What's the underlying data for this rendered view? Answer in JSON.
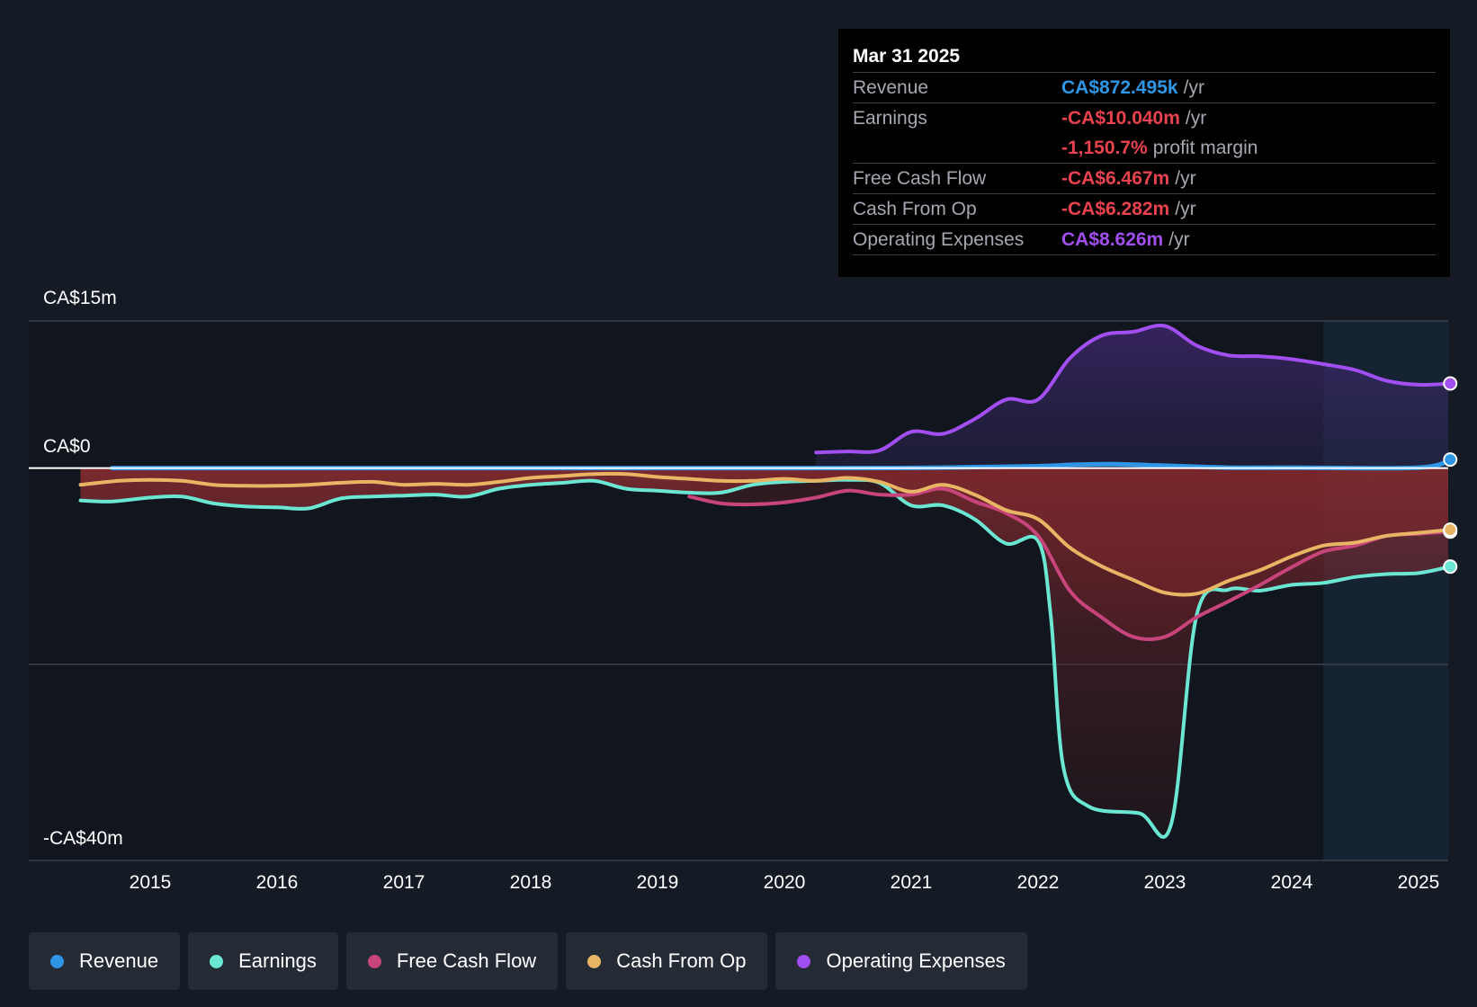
{
  "tooltip": {
    "date": "Mar 31 2025",
    "rows": [
      {
        "label": "Revenue",
        "value": "CA$872.495k",
        "unit": "/yr",
        "color": "#2f96e6"
      },
      {
        "label": "Earnings",
        "value": "-CA$10.040m",
        "unit": "/yr",
        "color": "#e8424e"
      },
      {
        "label": "",
        "value": "-1,150.7%",
        "unit": "profit margin",
        "color": "#e8424e"
      },
      {
        "label": "Free Cash Flow",
        "value": "-CA$6.467m",
        "unit": "/yr",
        "color": "#e8424e"
      },
      {
        "label": "Cash From Op",
        "value": "-CA$6.282m",
        "unit": "/yr",
        "color": "#e8424e"
      },
      {
        "label": "Operating Expenses",
        "value": "CA$8.626m",
        "unit": "/yr",
        "color": "#a24ff2"
      }
    ]
  },
  "legend": [
    {
      "label": "Revenue",
      "color": "#2f96e6"
    },
    {
      "label": "Earnings",
      "color": "#6be6d2"
    },
    {
      "label": "Free Cash Flow",
      "color": "#c8457c"
    },
    {
      "label": "Cash From Op",
      "color": "#e8b565"
    },
    {
      "label": "Operating Expenses",
      "color": "#a24ff2"
    }
  ],
  "chart_data": {
    "type": "line",
    "title": "",
    "xlabel": "",
    "ylabel": "",
    "x_range": [
      2014.2,
      2025.25
    ],
    "ylim": [
      -40,
      15
    ],
    "y_tick_labels": [
      {
        "value": 15,
        "label": "CA$15m"
      },
      {
        "value": 0,
        "label": "CA$0"
      },
      {
        "value": -40,
        "label": "-CA$40m"
      }
    ],
    "gridlines": [
      15,
      -20,
      -40
    ],
    "x_ticks": [
      2015,
      2016,
      2017,
      2018,
      2019,
      2020,
      2021,
      2022,
      2023,
      2024,
      2025
    ],
    "forecast_start": 2024.25,
    "units": "CA$ millions",
    "series": [
      {
        "name": "Revenue",
        "color": "#2f96e6",
        "points": [
          [
            2014.7,
            0
          ],
          [
            2020,
            0
          ],
          [
            2021,
            0.02
          ],
          [
            2021.5,
            0.1
          ],
          [
            2022,
            0.2
          ],
          [
            2022.3,
            0.35
          ],
          [
            2022.6,
            0.4
          ],
          [
            2023,
            0.25
          ],
          [
            2023.5,
            0.05
          ],
          [
            2024,
            0.05
          ],
          [
            2025,
            0.05
          ],
          [
            2025.25,
            0.87
          ]
        ]
      },
      {
        "name": "Earnings",
        "color": "#6be6d2",
        "points": [
          [
            2014.45,
            -3.3
          ],
          [
            2014.7,
            -3.4
          ],
          [
            2015,
            -3.0
          ],
          [
            2015.25,
            -2.9
          ],
          [
            2015.5,
            -3.6
          ],
          [
            2015.75,
            -3.9
          ],
          [
            2016,
            -4.0
          ],
          [
            2016.25,
            -4.1
          ],
          [
            2016.5,
            -3.1
          ],
          [
            2016.75,
            -2.9
          ],
          [
            2017,
            -2.8
          ],
          [
            2017.25,
            -2.7
          ],
          [
            2017.5,
            -2.9
          ],
          [
            2017.75,
            -2.1
          ],
          [
            2018,
            -1.7
          ],
          [
            2018.25,
            -1.5
          ],
          [
            2018.5,
            -1.3
          ],
          [
            2018.75,
            -2.1
          ],
          [
            2019,
            -2.3
          ],
          [
            2019.25,
            -2.5
          ],
          [
            2019.5,
            -2.5
          ],
          [
            2019.75,
            -1.7
          ],
          [
            2020,
            -1.4
          ],
          [
            2020.25,
            -1.3
          ],
          [
            2020.5,
            -1.2
          ],
          [
            2020.75,
            -1.5
          ],
          [
            2021,
            -3.8
          ],
          [
            2021.25,
            -3.8
          ],
          [
            2021.5,
            -5.2
          ],
          [
            2021.75,
            -7.7
          ],
          [
            2022,
            -7.4
          ],
          [
            2022.1,
            -15
          ],
          [
            2022.2,
            -30.5
          ],
          [
            2022.4,
            -34.5
          ],
          [
            2022.8,
            -35.2
          ],
          [
            2023.05,
            -36.3
          ],
          [
            2023.25,
            -15
          ],
          [
            2023.5,
            -12.4
          ],
          [
            2023.75,
            -12.5
          ],
          [
            2024,
            -11.9
          ],
          [
            2024.25,
            -11.7
          ],
          [
            2024.5,
            -11.1
          ],
          [
            2024.75,
            -10.8
          ],
          [
            2025,
            -10.7
          ],
          [
            2025.25,
            -10.04
          ]
        ]
      },
      {
        "name": "Free Cash Flow",
        "color": "#c8457c",
        "points": [
          [
            2019.25,
            -2.9
          ],
          [
            2019.5,
            -3.6
          ],
          [
            2019.75,
            -3.7
          ],
          [
            2020,
            -3.5
          ],
          [
            2020.25,
            -3.0
          ],
          [
            2020.5,
            -2.3
          ],
          [
            2020.75,
            -2.7
          ],
          [
            2021,
            -2.7
          ],
          [
            2021.25,
            -2.1
          ],
          [
            2021.5,
            -3.4
          ],
          [
            2021.75,
            -4.6
          ],
          [
            2022,
            -6.9
          ],
          [
            2022.25,
            -12.5
          ],
          [
            2022.5,
            -15.2
          ],
          [
            2022.75,
            -17.2
          ],
          [
            2023,
            -17.2
          ],
          [
            2023.25,
            -15.2
          ],
          [
            2023.5,
            -13.6
          ],
          [
            2023.75,
            -11.9
          ],
          [
            2024,
            -10.1
          ],
          [
            2024.25,
            -8.5
          ],
          [
            2024.5,
            -7.9
          ],
          [
            2024.75,
            -6.9
          ],
          [
            2025,
            -6.7
          ],
          [
            2025.25,
            -6.47
          ]
        ]
      },
      {
        "name": "Cash From Op",
        "color": "#e8b565",
        "points": [
          [
            2014.45,
            -1.7
          ],
          [
            2014.75,
            -1.3
          ],
          [
            2015,
            -1.2
          ],
          [
            2015.25,
            -1.3
          ],
          [
            2015.5,
            -1.7
          ],
          [
            2015.75,
            -1.8
          ],
          [
            2016,
            -1.8
          ],
          [
            2016.25,
            -1.7
          ],
          [
            2016.5,
            -1.5
          ],
          [
            2016.75,
            -1.4
          ],
          [
            2017,
            -1.7
          ],
          [
            2017.25,
            -1.6
          ],
          [
            2017.5,
            -1.7
          ],
          [
            2017.75,
            -1.4
          ],
          [
            2018,
            -1.0
          ],
          [
            2018.25,
            -0.8
          ],
          [
            2018.5,
            -0.6
          ],
          [
            2018.75,
            -0.6
          ],
          [
            2019,
            -0.9
          ],
          [
            2019.25,
            -1.1
          ],
          [
            2019.5,
            -1.3
          ],
          [
            2019.75,
            -1.3
          ],
          [
            2020,
            -1.1
          ],
          [
            2020.25,
            -1.3
          ],
          [
            2020.5,
            -1.0
          ],
          [
            2020.75,
            -1.4
          ],
          [
            2021,
            -2.4
          ],
          [
            2021.25,
            -1.7
          ],
          [
            2021.5,
            -2.7
          ],
          [
            2021.75,
            -4.3
          ],
          [
            2022,
            -5.2
          ],
          [
            2022.25,
            -8.1
          ],
          [
            2022.5,
            -10.0
          ],
          [
            2022.75,
            -11.4
          ],
          [
            2023,
            -12.7
          ],
          [
            2023.25,
            -12.8
          ],
          [
            2023.5,
            -11.5
          ],
          [
            2023.75,
            -10.4
          ],
          [
            2024,
            -9.0
          ],
          [
            2024.25,
            -7.9
          ],
          [
            2024.5,
            -7.6
          ],
          [
            2024.75,
            -6.9
          ],
          [
            2025,
            -6.6
          ],
          [
            2025.25,
            -6.28
          ]
        ]
      },
      {
        "name": "Operating Expenses",
        "color": "#a24ff2",
        "points": [
          [
            2020.25,
            1.6
          ],
          [
            2020.5,
            1.7
          ],
          [
            2020.75,
            1.8
          ],
          [
            2021,
            3.7
          ],
          [
            2021.25,
            3.5
          ],
          [
            2021.5,
            5.0
          ],
          [
            2021.75,
            7.0
          ],
          [
            2022,
            7.0
          ],
          [
            2022.25,
            11.2
          ],
          [
            2022.5,
            13.5
          ],
          [
            2022.75,
            13.9
          ],
          [
            2023,
            14.5
          ],
          [
            2023.25,
            12.5
          ],
          [
            2023.5,
            11.5
          ],
          [
            2023.75,
            11.4
          ],
          [
            2024,
            11.1
          ],
          [
            2024.25,
            10.6
          ],
          [
            2024.5,
            10.0
          ],
          [
            2024.75,
            8.9
          ],
          [
            2025,
            8.5
          ],
          [
            2025.25,
            8.63
          ]
        ]
      }
    ]
  }
}
